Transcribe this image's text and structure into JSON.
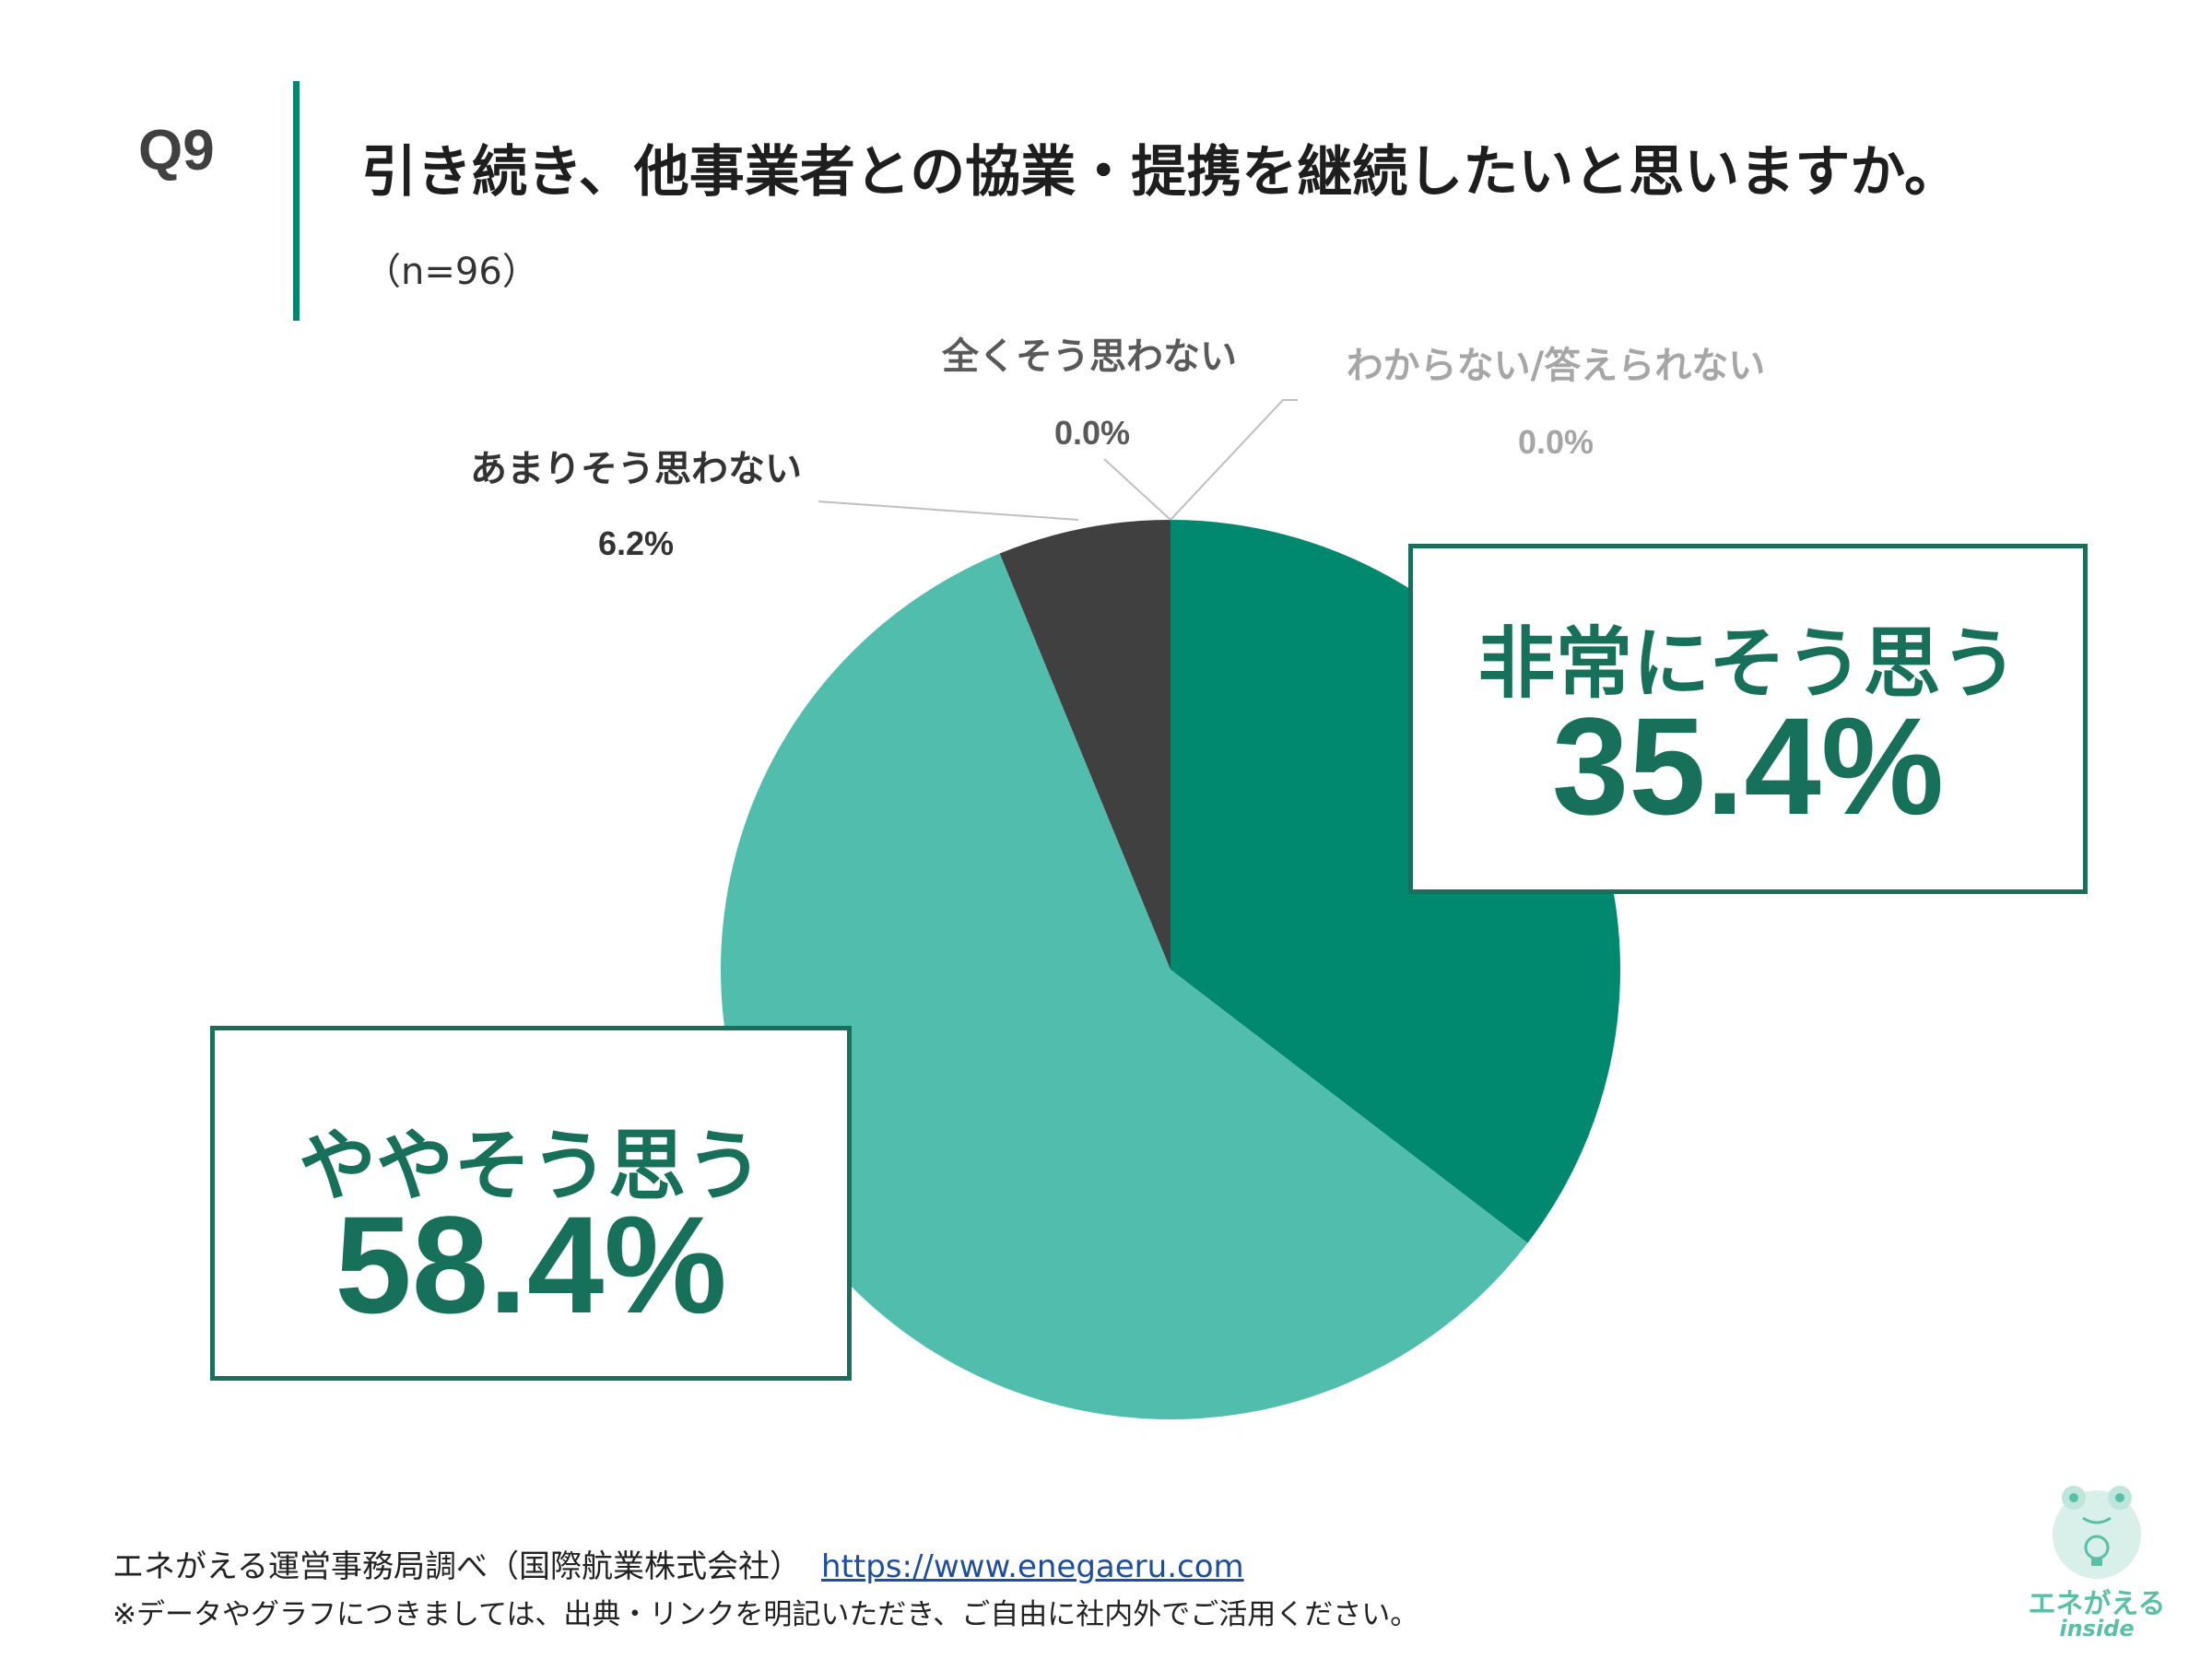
{
  "header": {
    "question_number": "Q9",
    "title": "引き続き、他事業者との協業・提携を継続したいと思いますか。",
    "sample_size": "（n=96）"
  },
  "chart_data": {
    "type": "pie",
    "slices": [
      {
        "label": "非常にそう思う",
        "value": 35.4,
        "value_label": "35.4%",
        "color": "#00896f"
      },
      {
        "label": "ややそう思う",
        "value": 58.4,
        "value_label": "58.4%",
        "color": "#50bdad"
      },
      {
        "label": "あまりそう思わない",
        "value": 6.2,
        "value_label": "6.2%",
        "color": "#404040"
      },
      {
        "label": "全くそう思わない",
        "value": 0.0,
        "value_label": "0.0%",
        "color": "#595959"
      },
      {
        "label": "わからない/答えられない",
        "value": 0.0,
        "value_label": "0.0%",
        "color": "#a6a6a6"
      }
    ],
    "start_angle": "12 o'clock",
    "direction": "clockwise"
  },
  "callouts": {
    "box1": {
      "name": "非常にそう思う",
      "value": "35.4%"
    },
    "box2": {
      "name": "ややそう思う",
      "value": "58.4%"
    }
  },
  "footer": {
    "source": "エネがえる運営事務局調べ（国際航業株式会社）",
    "link": "https://www.enegaeru.com",
    "note": "※データやグラフにつきましては、出典・リンクを明記いただき、ご自由に社内外でご活用ください。"
  },
  "logo": {
    "text": "エネがえる",
    "sub": "inside",
    "icon": "frog-lightbulb-icon"
  },
  "colors": {
    "accent": "#00856f",
    "callout_border": "#1a6e5b",
    "callout_text": "#17705a"
  }
}
